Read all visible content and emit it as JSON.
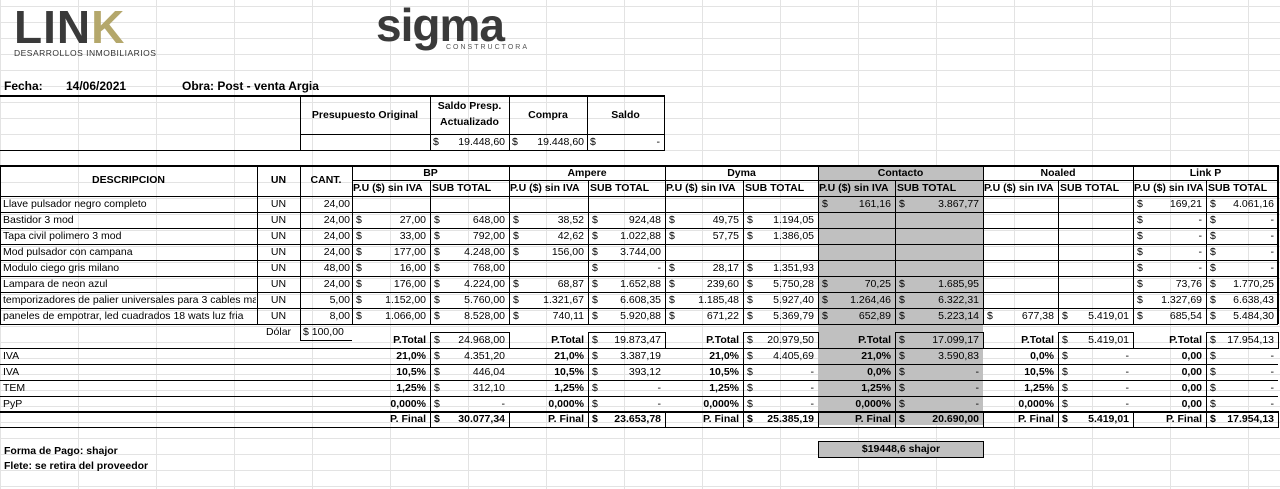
{
  "logos": {
    "link_word": "LINK",
    "link_sub": "DESARROLLOS INMOBILIARIOS",
    "sigma_word": "sigma",
    "sigma_sub": "CONSTRUCTORA"
  },
  "header": {
    "fecha_label": "Fecha:",
    "fecha_value": "14/06/2021",
    "obra": "Obra: Post - venta Argia"
  },
  "summary": {
    "col1": "Presupuesto Original",
    "col2_a": "Saldo Presp.",
    "col2_b": "Actualizado",
    "col3": "Compra",
    "col4": "Saldo",
    "val2": "19.448,60",
    "val3": "19.448,60",
    "val4": "-"
  },
  "columns": {
    "descripcion": "DESCRIPCION",
    "un": "UN",
    "cant": "CANT.",
    "pu": "P.U ($) sin IVA",
    "sub": "SUB TOTAL",
    "currency": "$"
  },
  "suppliers": [
    "BP",
    "Ampere",
    "Dyma",
    "Contacto",
    "Noaled",
    "Link P"
  ],
  "rows": [
    {
      "desc": "Llave pulsador negro completo",
      "un": "UN",
      "cant": "24,00",
      "v": [
        [
          "",
          ""
        ],
        [
          "",
          ""
        ],
        [
          "",
          ""
        ],
        [
          "161,16",
          "3.867,77"
        ],
        [
          "",
          ""
        ],
        [
          "169,21",
          "4.061,16"
        ]
      ]
    },
    {
      "desc": "Bastidor 3 mod",
      "un": "UN",
      "cant": "24,00",
      "v": [
        [
          "27,00",
          "648,00"
        ],
        [
          "38,52",
          "924,48"
        ],
        [
          "49,75",
          "1.194,05"
        ],
        [
          "",
          ""
        ],
        [
          "",
          ""
        ],
        [
          "-",
          "-"
        ]
      ]
    },
    {
      "desc": "Tapa civil polimero 3 mod",
      "un": "UN",
      "cant": "24,00",
      "v": [
        [
          "33,00",
          "792,00"
        ],
        [
          "42,62",
          "1.022,88"
        ],
        [
          "57,75",
          "1.386,05"
        ],
        [
          "",
          ""
        ],
        [
          "",
          ""
        ],
        [
          "-",
          "-"
        ]
      ]
    },
    {
      "desc": "Mod pulsador con campana",
      "un": "UN",
      "cant": "24,00",
      "v": [
        [
          "177,00",
          "4.248,00"
        ],
        [
          "156,00",
          "3.744,00"
        ],
        [
          "",
          ""
        ],
        [
          "",
          ""
        ],
        [
          "",
          ""
        ],
        [
          "-",
          "-"
        ]
      ]
    },
    {
      "desc": "Modulo ciego gris milano",
      "un": "UN",
      "cant": "48,00",
      "v": [
        [
          "16,00",
          "768,00"
        ],
        [
          "",
          "-"
        ],
        [
          "28,17",
          "1.351,93"
        ],
        [
          "",
          ""
        ],
        [
          "",
          ""
        ],
        [
          "-",
          "-"
        ]
      ]
    },
    {
      "desc": "Lampara de neon azul",
      "un": "UN",
      "cant": "24,00",
      "v": [
        [
          "176,00",
          "4.224,00"
        ],
        [
          "68,87",
          "1.652,88"
        ],
        [
          "239,60",
          "5.750,28"
        ],
        [
          "70,25",
          "1.685,95"
        ],
        [
          "",
          ""
        ],
        [
          "73,76",
          "1.770,25"
        ]
      ]
    },
    {
      "desc": "temporizadores de palier universales para 3 cables ma",
      "un": "UN",
      "cant": "5,00",
      "v": [
        [
          "1.152,00",
          "5.760,00"
        ],
        [
          "1.321,67",
          "6.608,35"
        ],
        [
          "1.185,48",
          "5.927,40"
        ],
        [
          "1.264,46",
          "6.322,31"
        ],
        [
          "",
          ""
        ],
        [
          "1.327,69",
          "6.638,43"
        ]
      ]
    },
    {
      "desc": "paneles de empotrar, led cuadrados 18 wats luz fria",
      "un": "UN",
      "cant": "8,00",
      "v": [
        [
          "1.066,00",
          "8.528,00"
        ],
        [
          "740,11",
          "5.920,88"
        ],
        [
          "671,22",
          "5.369,79"
        ],
        [
          "652,89",
          "5.223,14"
        ],
        [
          "677,38",
          "5.419,01"
        ],
        [
          "685,54",
          "5.484,30"
        ]
      ]
    }
  ],
  "dolar": {
    "label": "Dólar",
    "value": "$ 100,00"
  },
  "ptotal": {
    "label": "P.Total",
    "values": [
      "24.968,00",
      "19.873,47",
      "20.979,50",
      "17.099,17",
      "5.419,01",
      "17.954,13"
    ]
  },
  "taxes": [
    {
      "name": "IVA",
      "rate": [
        "21,0%",
        "21,0%",
        "21,0%",
        "21,0%",
        "0,0%",
        "0,00"
      ],
      "amount": [
        "4.351,20",
        "3.387,19",
        "4.405,69",
        "3.590,83",
        "-",
        "-"
      ]
    },
    {
      "name": "IVA",
      "rate": [
        "10,5%",
        "10,5%",
        "10,5%",
        "0,0%",
        "10,5%",
        "0,00"
      ],
      "amount": [
        "446,04",
        "393,12",
        "-",
        "-",
        "-",
        "-"
      ]
    },
    {
      "name": "TEM",
      "rate": [
        "1,25%",
        "1,25%",
        "1,25%",
        "1,25%",
        "1,25%",
        "0,00"
      ],
      "amount": [
        "312,10",
        "-",
        "-",
        "-",
        "-",
        "-"
      ]
    },
    {
      "name": "PyP",
      "rate": [
        "0,000%",
        "0,000%",
        "0,000%",
        "0,000%",
        "0,000%",
        "0,00"
      ],
      "amount": [
        "-",
        "-",
        "-",
        "-",
        "-",
        "-"
      ]
    }
  ],
  "pfinal": {
    "label": "P. Final",
    "values": [
      "30.077,34",
      "23.653,78",
      "25.385,19",
      "20.690,00",
      "5.419,01",
      "17.954,13"
    ]
  },
  "footer": {
    "forma_pago": "Forma de Pago: shajor",
    "flete": "Flete: se retira del proveedor",
    "contacto_note": "$19448,6 shajor"
  },
  "colors": {
    "highlight": "#c0c0c0",
    "logo_gold": "#b4a76b",
    "logo_dark": "#3a3a3a"
  }
}
